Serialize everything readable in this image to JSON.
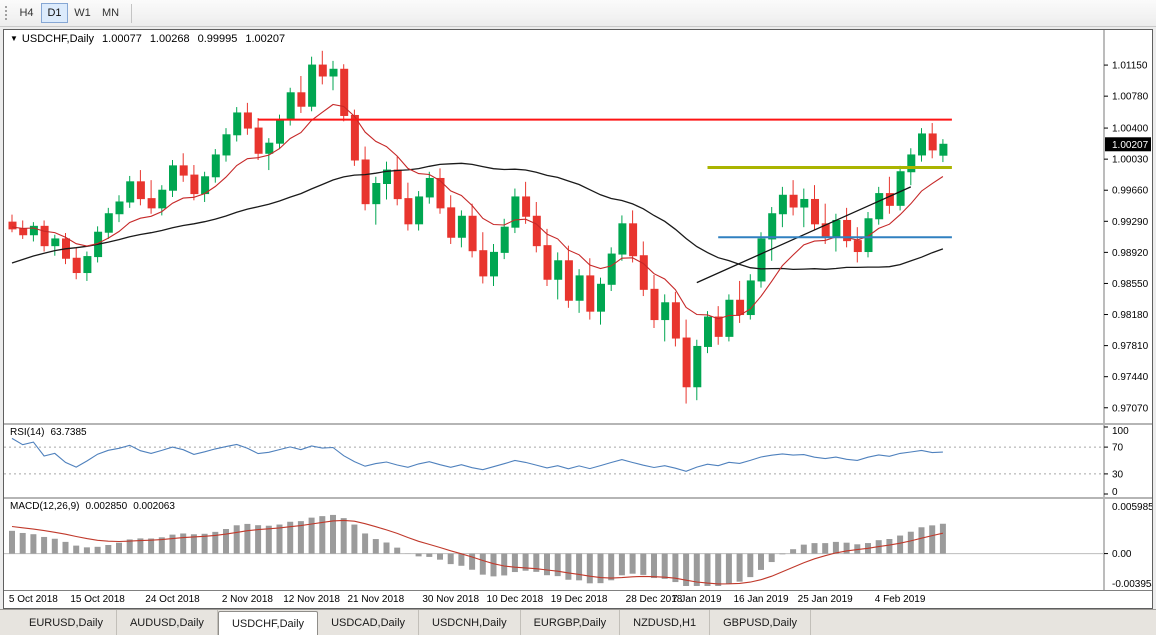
{
  "toolbar": {
    "buttons": [
      {
        "label": "H4",
        "active": false
      },
      {
        "label": "D1",
        "active": true
      },
      {
        "label": "W1",
        "active": false
      },
      {
        "label": "MN",
        "active": false
      }
    ]
  },
  "chart": {
    "title": {
      "symbol": "USDCHF,Daily",
      "open": "1.00077",
      "high": "1.00268",
      "low": "0.99995",
      "close": "1.00207"
    }
  },
  "rsi": {
    "label": "RSI(14)",
    "value": "63.7385",
    "levels": [
      {
        "label": "100",
        "value": 100
      },
      {
        "label": "70",
        "value": 70
      },
      {
        "label": "30",
        "value": 30
      },
      {
        "label": "0",
        "value": 0
      }
    ],
    "dotted": [
      70,
      30
    ]
  },
  "macd": {
    "label": "MACD(12,26,9)",
    "value_main": "0.002850",
    "value_signal": "0.002063",
    "scale": {
      "top_label": "0.005985",
      "top": 0.005985,
      "zero_label": "0.00",
      "bottom_label": "-0.003954",
      "bottom": -0.003954
    }
  },
  "tabs": [
    {
      "label": "EURUSD,Daily",
      "active": false
    },
    {
      "label": "AUDUSD,Daily",
      "active": false
    },
    {
      "label": "USDCHF,Daily",
      "active": true
    },
    {
      "label": "USDCAD,Daily",
      "active": false
    },
    {
      "label": "USDCNH,Daily",
      "active": false
    },
    {
      "label": "EURGBP,Daily",
      "active": false
    },
    {
      "label": "NZDUSD,H1",
      "active": false
    },
    {
      "label": "GBPUSD,Daily",
      "active": false
    }
  ],
  "colors": {
    "up": "#00a651",
    "down": "#e8352e",
    "rsi_line": "#4f81bd",
    "level_dotted": "#a8a8a8",
    "macd_hist": "#9b9b9b",
    "macd_signal": "#c0392b",
    "scale_sep": "#7a7a7a",
    "price_tag_bg": "#000000",
    "price_tag_text": "#ffffff"
  },
  "chart_data": {
    "type": "candlestick",
    "symbol": "USDCHF",
    "timeframe": "Daily",
    "x_step": 10.7,
    "y_max": 1.0152,
    "y_min": 0.9696,
    "y_ticks": [
      1.0115,
      1.0078,
      1.004,
      1.0003,
      0.9966,
      0.9929,
      0.9892,
      0.9855,
      0.9818,
      0.9781,
      0.9744,
      0.9707
    ],
    "x_ticks": [
      {
        "label": "5 Oct 2018",
        "index": 2
      },
      {
        "label": "15 Oct 2018",
        "index": 8
      },
      {
        "label": "24 Oct 2018",
        "index": 15
      },
      {
        "label": "2 Nov 2018",
        "index": 22
      },
      {
        "label": "12 Nov 2018",
        "index": 28
      },
      {
        "label": "21 Nov 2018",
        "index": 34
      },
      {
        "label": "30 Nov 2018",
        "index": 41
      },
      {
        "label": "10 Dec 2018",
        "index": 47
      },
      {
        "label": "19 Dec 2018",
        "index": 53
      },
      {
        "label": "28 Dec 2018",
        "index": 60
      },
      {
        "label": "7 Jan 2019",
        "index": 64
      },
      {
        "label": "16 Jan 2019",
        "index": 70
      },
      {
        "label": "25 Jan 2019",
        "index": 76
      },
      {
        "label": "4 Feb 2019",
        "index": 83
      }
    ],
    "current_price": 1.00207,
    "current_price_label": "1.00207",
    "overlays": {
      "ma_fast": {
        "period": 10,
        "color": "#c62828"
      },
      "ma_slow": {
        "period": 34,
        "color": "#1a1a1a"
      },
      "trendline": {
        "from_index": 64,
        "from_price": 0.9856,
        "to_index": 84,
        "to_price": 0.997,
        "color": "#141414"
      },
      "hlines": [
        {
          "price": 1.005,
          "from_index": 23,
          "color": "#fe1414",
          "width": 2
        },
        {
          "price": 0.9993,
          "from_index": 65,
          "color": "#aab400",
          "width": 3
        },
        {
          "price": 0.991,
          "from_index": 66,
          "color": "#3080c0",
          "width": 2
        }
      ]
    },
    "rsi": {
      "period": 14
    },
    "macd": {
      "fast": 12,
      "slow": 26,
      "signal": 9
    },
    "pre_closes": [
      0.97,
      0.9712,
      0.972,
      0.9732,
      0.974,
      0.9752,
      0.976,
      0.9772,
      0.978,
      0.9792,
      0.98,
      0.9812,
      0.982,
      0.983,
      0.9838,
      0.9846,
      0.9852,
      0.986,
      0.9866,
      0.9872,
      0.9878,
      0.9884,
      0.989,
      0.9894,
      0.9898,
      0.9902,
      0.9906,
      0.991,
      0.9912,
      0.9915,
      0.9918,
      0.992,
      0.9922,
      0.9924,
      0.9925,
      0.9926,
      0.9927,
      0.9928,
      0.9929,
      0.993
    ],
    "ohlc": [
      [
        0.9928,
        0.9937,
        0.9916,
        0.992
      ],
      [
        0.992,
        0.993,
        0.9908,
        0.9913
      ],
      [
        0.9913,
        0.9928,
        0.9905,
        0.9923
      ],
      [
        0.9923,
        0.993,
        0.9893,
        0.99
      ],
      [
        0.99,
        0.9913,
        0.9888,
        0.9908
      ],
      [
        0.9908,
        0.9915,
        0.9878,
        0.9885
      ],
      [
        0.9885,
        0.9898,
        0.986,
        0.9868
      ],
      [
        0.9868,
        0.9893,
        0.9858,
        0.9887
      ],
      [
        0.9887,
        0.9923,
        0.988,
        0.9916
      ],
      [
        0.9916,
        0.9945,
        0.9908,
        0.9938
      ],
      [
        0.9938,
        0.996,
        0.9928,
        0.9952
      ],
      [
        0.9952,
        0.9983,
        0.9945,
        0.9976
      ],
      [
        0.9976,
        0.999,
        0.9948,
        0.9956
      ],
      [
        0.9956,
        0.9978,
        0.9938,
        0.9945
      ],
      [
        0.9945,
        0.9972,
        0.9936,
        0.9966
      ],
      [
        0.9966,
        1.0002,
        0.9958,
        0.9995
      ],
      [
        0.9995,
        1.001,
        0.9976,
        0.9984
      ],
      [
        0.9984,
        0.9996,
        0.9954,
        0.9962
      ],
      [
        0.9962,
        0.9988,
        0.9952,
        0.9982
      ],
      [
        0.9982,
        1.0015,
        0.9975,
        1.0008
      ],
      [
        1.0008,
        1.004,
        1.0,
        1.0032
      ],
      [
        1.0032,
        1.0065,
        1.0024,
        1.0058
      ],
      [
        1.0058,
        1.007,
        1.0032,
        1.004
      ],
      [
        1.004,
        1.0052,
        1.0002,
        1.001
      ],
      [
        1.001,
        1.0028,
        0.999,
        1.0022
      ],
      [
        1.0022,
        1.0056,
        1.0015,
        1.005
      ],
      [
        1.005,
        1.0088,
        1.0043,
        1.0082
      ],
      [
        1.0082,
        1.0102,
        1.0058,
        1.0066
      ],
      [
        1.0066,
        1.0125,
        1.006,
        1.0115
      ],
      [
        1.0115,
        1.0132,
        1.0092,
        1.0102
      ],
      [
        1.0102,
        1.012,
        1.0085,
        1.011
      ],
      [
        1.011,
        1.0116,
        1.0048,
        1.0055
      ],
      [
        1.0055,
        1.0062,
        0.9995,
        1.0002
      ],
      [
        1.0002,
        1.0018,
        0.9942,
        0.995
      ],
      [
        0.995,
        0.9982,
        0.9925,
        0.9974
      ],
      [
        0.9974,
        1.0,
        0.9955,
        0.999
      ],
      [
        0.999,
        1.0006,
        0.9948,
        0.9956
      ],
      [
        0.9956,
        0.9975,
        0.9918,
        0.9926
      ],
      [
        0.9926,
        0.9965,
        0.9918,
        0.9958
      ],
      [
        0.9958,
        0.9988,
        0.995,
        0.998
      ],
      [
        0.998,
        0.9992,
        0.9938,
        0.9945
      ],
      [
        0.9945,
        0.996,
        0.9902,
        0.991
      ],
      [
        0.991,
        0.9942,
        0.9898,
        0.9935
      ],
      [
        0.9935,
        0.995,
        0.9886,
        0.9894
      ],
      [
        0.9894,
        0.9916,
        0.9855,
        0.9864
      ],
      [
        0.9864,
        0.9902,
        0.9852,
        0.9892
      ],
      [
        0.9892,
        0.9932,
        0.9884,
        0.9922
      ],
      [
        0.9922,
        0.9968,
        0.9915,
        0.9958
      ],
      [
        0.9958,
        0.9976,
        0.9926,
        0.9935
      ],
      [
        0.9935,
        0.9952,
        0.9892,
        0.99
      ],
      [
        0.99,
        0.992,
        0.9852,
        0.986
      ],
      [
        0.986,
        0.9892,
        0.9836,
        0.9882
      ],
      [
        0.9882,
        0.99,
        0.9826,
        0.9835
      ],
      [
        0.9835,
        0.9872,
        0.982,
        0.9864
      ],
      [
        0.9864,
        0.9885,
        0.9812,
        0.9822
      ],
      [
        0.9822,
        0.9862,
        0.9806,
        0.9854
      ],
      [
        0.9854,
        0.9898,
        0.9846,
        0.989
      ],
      [
        0.989,
        0.9936,
        0.9882,
        0.9926
      ],
      [
        0.9926,
        0.9942,
        0.988,
        0.9888
      ],
      [
        0.9888,
        0.9905,
        0.984,
        0.9848
      ],
      [
        0.9848,
        0.9865,
        0.9802,
        0.9812
      ],
      [
        0.9812,
        0.9842,
        0.9786,
        0.9832
      ],
      [
        0.9832,
        0.9845,
        0.978,
        0.979
      ],
      [
        0.979,
        0.9812,
        0.9712,
        0.9732
      ],
      [
        0.9732,
        0.9788,
        0.9716,
        0.978
      ],
      [
        0.978,
        0.9822,
        0.9772,
        0.9815
      ],
      [
        0.9815,
        0.9828,
        0.9782,
        0.9792
      ],
      [
        0.9792,
        0.9842,
        0.9786,
        0.9835
      ],
      [
        0.9835,
        0.9858,
        0.9808,
        0.9818
      ],
      [
        0.9818,
        0.9866,
        0.9812,
        0.9858
      ],
      [
        0.9858,
        0.9916,
        0.985,
        0.9908
      ],
      [
        0.9908,
        0.9946,
        0.9882,
        0.9938
      ],
      [
        0.9938,
        0.997,
        0.9922,
        0.996
      ],
      [
        0.996,
        0.9978,
        0.9936,
        0.9946
      ],
      [
        0.9946,
        0.9968,
        0.9922,
        0.9955
      ],
      [
        0.9955,
        0.9972,
        0.9918,
        0.9926
      ],
      [
        0.9926,
        0.995,
        0.9902,
        0.991
      ],
      [
        0.991,
        0.9938,
        0.9893,
        0.993
      ],
      [
        0.993,
        0.9945,
        0.9898,
        0.9906
      ],
      [
        0.9906,
        0.9922,
        0.988,
        0.9893
      ],
      [
        0.9893,
        0.994,
        0.9886,
        0.9932
      ],
      [
        0.9932,
        0.997,
        0.9925,
        0.9962
      ],
      [
        0.9962,
        0.9982,
        0.9938,
        0.9948
      ],
      [
        0.9948,
        0.9995,
        0.9942,
        0.9988
      ],
      [
        0.9988,
        1.0016,
        0.9972,
        1.0008
      ],
      [
        1.0008,
        1.004,
        1.0,
        1.0033
      ],
      [
        1.0033,
        1.0046,
        1.0004,
        1.0014
      ],
      [
        1.00077,
        1.00268,
        0.99995,
        1.00207
      ]
    ]
  }
}
